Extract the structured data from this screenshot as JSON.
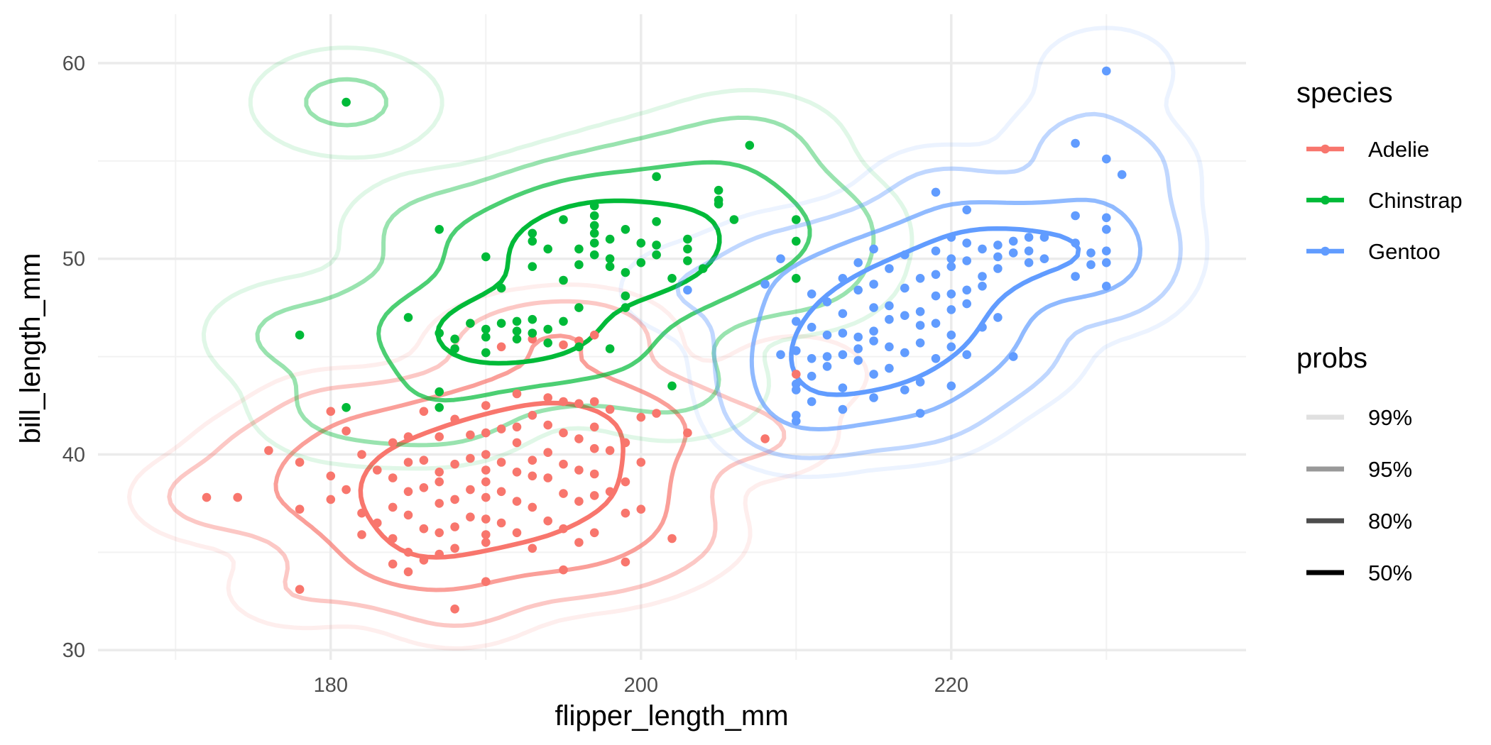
{
  "chart_data": {
    "type": "scatter",
    "subtype": "scatter with 2D density contours",
    "xlabel": "flipper_length_mm",
    "ylabel": "bill_length_mm",
    "xlim": [
      165,
      239
    ],
    "ylim": [
      29.5,
      62.5
    ],
    "x_ticks": [
      180,
      200,
      220
    ],
    "y_ticks": [
      30,
      40,
      50,
      60
    ],
    "grid": true,
    "legend_position": "right",
    "legend": {
      "color_title": "species",
      "probs_title": "probs",
      "probs": [
        {
          "label": "99%",
          "alpha": 0.12
        },
        {
          "label": "95%",
          "alpha": 0.4
        },
        {
          "label": "80%",
          "alpha": 0.7
        },
        {
          "label": "50%",
          "alpha": 1.0
        }
      ]
    },
    "series": [
      {
        "name": "Adelie",
        "color": "#F8766D",
        "points": [
          [
            172,
            37.8
          ],
          [
            174,
            37.8
          ],
          [
            176,
            40.2
          ],
          [
            178,
            39.6
          ],
          [
            178,
            37.2
          ],
          [
            178,
            33.1
          ],
          [
            180,
            38.9
          ],
          [
            180,
            37.7
          ],
          [
            180,
            42.2
          ],
          [
            181,
            41.2
          ],
          [
            181,
            38.2
          ],
          [
            182,
            40.0
          ],
          [
            182,
            37.0
          ],
          [
            182,
            35.9
          ],
          [
            183,
            39.2
          ],
          [
            183,
            36.5
          ],
          [
            184,
            40.6
          ],
          [
            184,
            38.8
          ],
          [
            184,
            37.3
          ],
          [
            184,
            35.7
          ],
          [
            184,
            34.4
          ],
          [
            185,
            40.9
          ],
          [
            185,
            39.6
          ],
          [
            185,
            38.1
          ],
          [
            185,
            36.9
          ],
          [
            185,
            35.0
          ],
          [
            185,
            34.0
          ],
          [
            186,
            42.2
          ],
          [
            186,
            39.7
          ],
          [
            186,
            38.3
          ],
          [
            186,
            36.2
          ],
          [
            186,
            34.6
          ],
          [
            187,
            40.9
          ],
          [
            187,
            39.1
          ],
          [
            187,
            38.6
          ],
          [
            187,
            37.5
          ],
          [
            187,
            36.0
          ],
          [
            187,
            34.9
          ],
          [
            188,
            41.8
          ],
          [
            188,
            39.5
          ],
          [
            188,
            37.7
          ],
          [
            188,
            36.3
          ],
          [
            188,
            35.2
          ],
          [
            188,
            32.1
          ],
          [
            189,
            41.0
          ],
          [
            189,
            39.8
          ],
          [
            189,
            38.2
          ],
          [
            189,
            36.8
          ],
          [
            190,
            42.5
          ],
          [
            190,
            41.1
          ],
          [
            190,
            40.0
          ],
          [
            190,
            39.2
          ],
          [
            190,
            38.6
          ],
          [
            190,
            37.8
          ],
          [
            190,
            36.7
          ],
          [
            190,
            35.9
          ],
          [
            190,
            35.5
          ],
          [
            190,
            33.5
          ],
          [
            191,
            41.3
          ],
          [
            191,
            39.6
          ],
          [
            191,
            38.1
          ],
          [
            191,
            36.5
          ],
          [
            192,
            43.1
          ],
          [
            192,
            41.4
          ],
          [
            192,
            40.6
          ],
          [
            192,
            39.1
          ],
          [
            192,
            37.6
          ],
          [
            192,
            36.0
          ],
          [
            193,
            42.0
          ],
          [
            193,
            39.7
          ],
          [
            193,
            38.9
          ],
          [
            193,
            37.3
          ],
          [
            193,
            35.2
          ],
          [
            194,
            42.9
          ],
          [
            194,
            41.5
          ],
          [
            194,
            40.1
          ],
          [
            194,
            38.8
          ],
          [
            194,
            36.6
          ],
          [
            195,
            42.7
          ],
          [
            195,
            41.1
          ],
          [
            195,
            39.5
          ],
          [
            195,
            38.0
          ],
          [
            195,
            36.2
          ],
          [
            195,
            34.1
          ],
          [
            196,
            42.6
          ],
          [
            196,
            40.8
          ],
          [
            196,
            39.2
          ],
          [
            196,
            37.6
          ],
          [
            196,
            35.5
          ],
          [
            197,
            42.7
          ],
          [
            197,
            41.4
          ],
          [
            197,
            40.3
          ],
          [
            197,
            39.0
          ],
          [
            197,
            37.9
          ],
          [
            197,
            36.0
          ],
          [
            198,
            42.3
          ],
          [
            198,
            40.2
          ],
          [
            198,
            38.1
          ],
          [
            199,
            40.6
          ],
          [
            199,
            38.6
          ],
          [
            199,
            37.0
          ],
          [
            199,
            34.5
          ],
          [
            200,
            41.9
          ],
          [
            200,
            39.6
          ],
          [
            200,
            37.2
          ],
          [
            201,
            42.1
          ],
          [
            202,
            35.7
          ],
          [
            203,
            41.1
          ],
          [
            208,
            40.8
          ],
          [
            210,
            44.1
          ],
          [
            191,
            45.5
          ],
          [
            193,
            45.9
          ],
          [
            195,
            45.6
          ],
          [
            196,
            45.8
          ],
          [
            197,
            46.1
          ]
        ]
      },
      {
        "name": "Chinstrap",
        "color": "#00BA38",
        "points": [
          [
            178,
            46.1
          ],
          [
            181,
            58.0
          ],
          [
            181,
            42.4
          ],
          [
            185,
            47.0
          ],
          [
            187,
            51.5
          ],
          [
            187,
            46.2
          ],
          [
            187,
            43.2
          ],
          [
            187,
            42.4
          ],
          [
            188,
            45.4
          ],
          [
            188,
            45.9
          ],
          [
            189,
            46.7
          ],
          [
            190,
            50.1
          ],
          [
            190,
            46.4
          ],
          [
            190,
            45.2
          ],
          [
            190,
            46.0
          ],
          [
            191,
            46.7
          ],
          [
            191,
            48.5
          ],
          [
            192,
            45.9
          ],
          [
            192,
            46.8
          ],
          [
            192,
            46.3
          ],
          [
            193,
            50.9
          ],
          [
            193,
            51.3
          ],
          [
            193,
            49.6
          ],
          [
            193,
            46.9
          ],
          [
            193,
            46.2
          ],
          [
            194,
            50.5
          ],
          [
            194,
            46.4
          ],
          [
            194,
            45.7
          ],
          [
            195,
            52.0
          ],
          [
            195,
            48.9
          ],
          [
            195,
            46.8
          ],
          [
            196,
            49.7
          ],
          [
            196,
            50.5
          ],
          [
            196,
            47.5
          ],
          [
            196,
            45.5
          ],
          [
            197,
            51.3
          ],
          [
            197,
            52.7
          ],
          [
            197,
            52.2
          ],
          [
            197,
            51.7
          ],
          [
            197,
            50.8
          ],
          [
            197,
            50.2
          ],
          [
            198,
            51.0
          ],
          [
            198,
            50.0
          ],
          [
            198,
            49.6
          ],
          [
            198,
            45.4
          ],
          [
            199,
            51.5
          ],
          [
            199,
            49.3
          ],
          [
            199,
            48.1
          ],
          [
            199,
            47.5
          ],
          [
            200,
            49.8
          ],
          [
            200,
            50.8
          ],
          [
            201,
            54.2
          ],
          [
            201,
            51.9
          ],
          [
            201,
            50.7
          ],
          [
            201,
            50.2
          ],
          [
            202,
            49.0
          ],
          [
            202,
            43.5
          ],
          [
            203,
            50.5
          ],
          [
            203,
            49.9
          ],
          [
            203,
            51.0
          ],
          [
            204,
            49.5
          ],
          [
            205,
            53.5
          ],
          [
            205,
            52.8
          ],
          [
            205,
            53.0
          ],
          [
            206,
            52.0
          ],
          [
            207,
            55.8
          ],
          [
            210,
            52.0
          ],
          [
            210,
            50.9
          ],
          [
            210,
            49.0
          ]
        ]
      },
      {
        "name": "Gentoo",
        "color": "#619CFF",
        "points": [
          [
            203,
            48.4
          ],
          [
            208,
            48.7
          ],
          [
            209,
            45.1
          ],
          [
            209,
            50.0
          ],
          [
            210,
            46.8
          ],
          [
            210,
            45.3
          ],
          [
            210,
            43.6
          ],
          [
            210,
            43.3
          ],
          [
            210,
            42.0
          ],
          [
            210,
            41.7
          ],
          [
            211,
            46.5
          ],
          [
            211,
            48.2
          ],
          [
            211,
            44.9
          ],
          [
            211,
            44.0
          ],
          [
            211,
            42.7
          ],
          [
            212,
            47.8
          ],
          [
            212,
            46.1
          ],
          [
            212,
            45.0
          ],
          [
            212,
            44.5
          ],
          [
            213,
            49.0
          ],
          [
            213,
            47.2
          ],
          [
            213,
            46.2
          ],
          [
            213,
            45.1
          ],
          [
            213,
            43.4
          ],
          [
            213,
            42.3
          ],
          [
            214,
            49.8
          ],
          [
            214,
            48.4
          ],
          [
            214,
            46.0
          ],
          [
            214,
            45.4
          ],
          [
            214,
            44.8
          ],
          [
            215,
            50.5
          ],
          [
            215,
            48.7
          ],
          [
            215,
            47.5
          ],
          [
            215,
            46.3
          ],
          [
            215,
            45.8
          ],
          [
            215,
            44.1
          ],
          [
            215,
            42.9
          ],
          [
            216,
            49.5
          ],
          [
            216,
            47.6
          ],
          [
            216,
            46.9
          ],
          [
            216,
            45.5
          ],
          [
            216,
            44.4
          ],
          [
            217,
            50.2
          ],
          [
            217,
            48.5
          ],
          [
            217,
            47.1
          ],
          [
            217,
            45.2
          ],
          [
            217,
            43.3
          ],
          [
            218,
            49.0
          ],
          [
            218,
            47.3
          ],
          [
            218,
            46.6
          ],
          [
            218,
            45.7
          ],
          [
            218,
            43.7
          ],
          [
            218,
            42.1
          ],
          [
            219,
            53.4
          ],
          [
            219,
            50.4
          ],
          [
            219,
            49.2
          ],
          [
            219,
            48.1
          ],
          [
            219,
            46.7
          ],
          [
            219,
            44.9
          ],
          [
            220,
            51.1
          ],
          [
            220,
            50.0
          ],
          [
            220,
            49.6
          ],
          [
            220,
            48.2
          ],
          [
            220,
            47.4
          ],
          [
            220,
            46.1
          ],
          [
            220,
            45.5
          ],
          [
            220,
            43.5
          ],
          [
            221,
            52.5
          ],
          [
            221,
            50.8
          ],
          [
            221,
            49.9
          ],
          [
            221,
            48.4
          ],
          [
            221,
            47.7
          ],
          [
            221,
            45.1
          ],
          [
            222,
            50.5
          ],
          [
            222,
            49.1
          ],
          [
            222,
            48.6
          ],
          [
            222,
            46.5
          ],
          [
            223,
            50.1
          ],
          [
            223,
            50.7
          ],
          [
            223,
            49.5
          ],
          [
            223,
            47.0
          ],
          [
            224,
            50.9
          ],
          [
            224,
            50.3
          ],
          [
            224,
            45.0
          ],
          [
            225,
            51.1
          ],
          [
            225,
            50.4
          ],
          [
            225,
            49.8
          ],
          [
            226,
            51.1
          ],
          [
            226,
            50.0
          ],
          [
            228,
            55.9
          ],
          [
            228,
            52.2
          ],
          [
            228,
            50.8
          ],
          [
            228,
            49.1
          ],
          [
            229,
            50.3
          ],
          [
            229,
            49.7
          ],
          [
            230,
            59.6
          ],
          [
            230,
            55.1
          ],
          [
            230,
            52.1
          ],
          [
            230,
            51.5
          ],
          [
            230,
            50.4
          ],
          [
            230,
            49.8
          ],
          [
            230,
            48.6
          ],
          [
            231,
            54.3
          ]
        ]
      }
    ]
  }
}
